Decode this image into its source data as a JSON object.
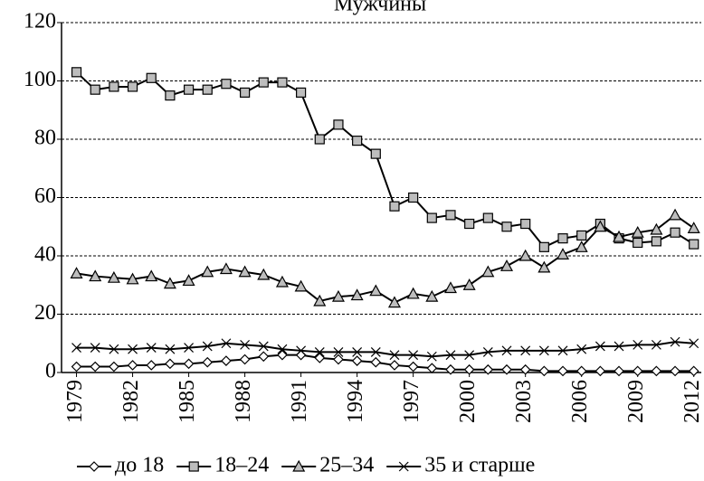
{
  "chart_data": {
    "type": "line",
    "title": "Мужчины",
    "x": [
      1979,
      1980,
      1981,
      1982,
      1983,
      1984,
      1985,
      1986,
      1987,
      1988,
      1989,
      1990,
      1991,
      1992,
      1993,
      1994,
      1995,
      1996,
      1997,
      1998,
      1999,
      2000,
      2001,
      2002,
      2003,
      2004,
      2005,
      2006,
      2007,
      2008,
      2009,
      2010,
      2011,
      2012
    ],
    "series": [
      {
        "name": "до 18",
        "color": "#000000",
        "marker": "diamond",
        "marker_fill": "#ffffff",
        "values": [
          2,
          2,
          2,
          2.5,
          2.5,
          3,
          3,
          3.5,
          4,
          4.5,
          5.5,
          6,
          6,
          5,
          4.5,
          4,
          3.5,
          2.5,
          2,
          1.5,
          1,
          1,
          1,
          1,
          1,
          0.5,
          0.5,
          0.5,
          0.5,
          0.5,
          0.5,
          0.5,
          0.5,
          0.5
        ]
      },
      {
        "name": "18–24",
        "color": "#000000",
        "marker": "square",
        "marker_fill": "#bdbdbd",
        "values": [
          103,
          97,
          98,
          98,
          101,
          95,
          97,
          97,
          99,
          96,
          99.5,
          99.5,
          96,
          80,
          85,
          79.5,
          75,
          57,
          60,
          53,
          54,
          51,
          53,
          50,
          51,
          43,
          46,
          47,
          51,
          46,
          44.5,
          45,
          48,
          44
        ]
      },
      {
        "name": "25–34",
        "color": "#000000",
        "marker": "triangle",
        "marker_fill": "#bdbdbd",
        "values": [
          34,
          33,
          32.5,
          32,
          33,
          30.5,
          31.5,
          34.5,
          35.5,
          34.5,
          33.5,
          31,
          29.5,
          24.5,
          26,
          26.5,
          28,
          24,
          27,
          26,
          29,
          30,
          34.5,
          36.5,
          40,
          36,
          40.5,
          43,
          50,
          46.5,
          48,
          49,
          54,
          49.5
        ]
      },
      {
        "name": "35 и старше",
        "color": "#000000",
        "marker": "x",
        "marker_fill": "#000000",
        "values": [
          8.5,
          8.5,
          8,
          8,
          8.5,
          8,
          8.5,
          9,
          10,
          9.5,
          9,
          8,
          7.5,
          7,
          7,
          7,
          7,
          6,
          6,
          5.5,
          6,
          6,
          7,
          7.5,
          7.5,
          7.5,
          7.5,
          8,
          9,
          9,
          9.5,
          9.5,
          10.5,
          10
        ]
      }
    ],
    "xlim": [
      1978.2,
      2012.4
    ],
    "xticks": [
      1979,
      1982,
      1985,
      1988,
      1991,
      1994,
      1997,
      2000,
      2003,
      2006,
      2009,
      2012
    ],
    "ylim": [
      0,
      120
    ],
    "yticks": [
      0,
      20,
      40,
      60,
      80,
      100,
      120
    ],
    "grid": true,
    "legend": "bottom"
  }
}
